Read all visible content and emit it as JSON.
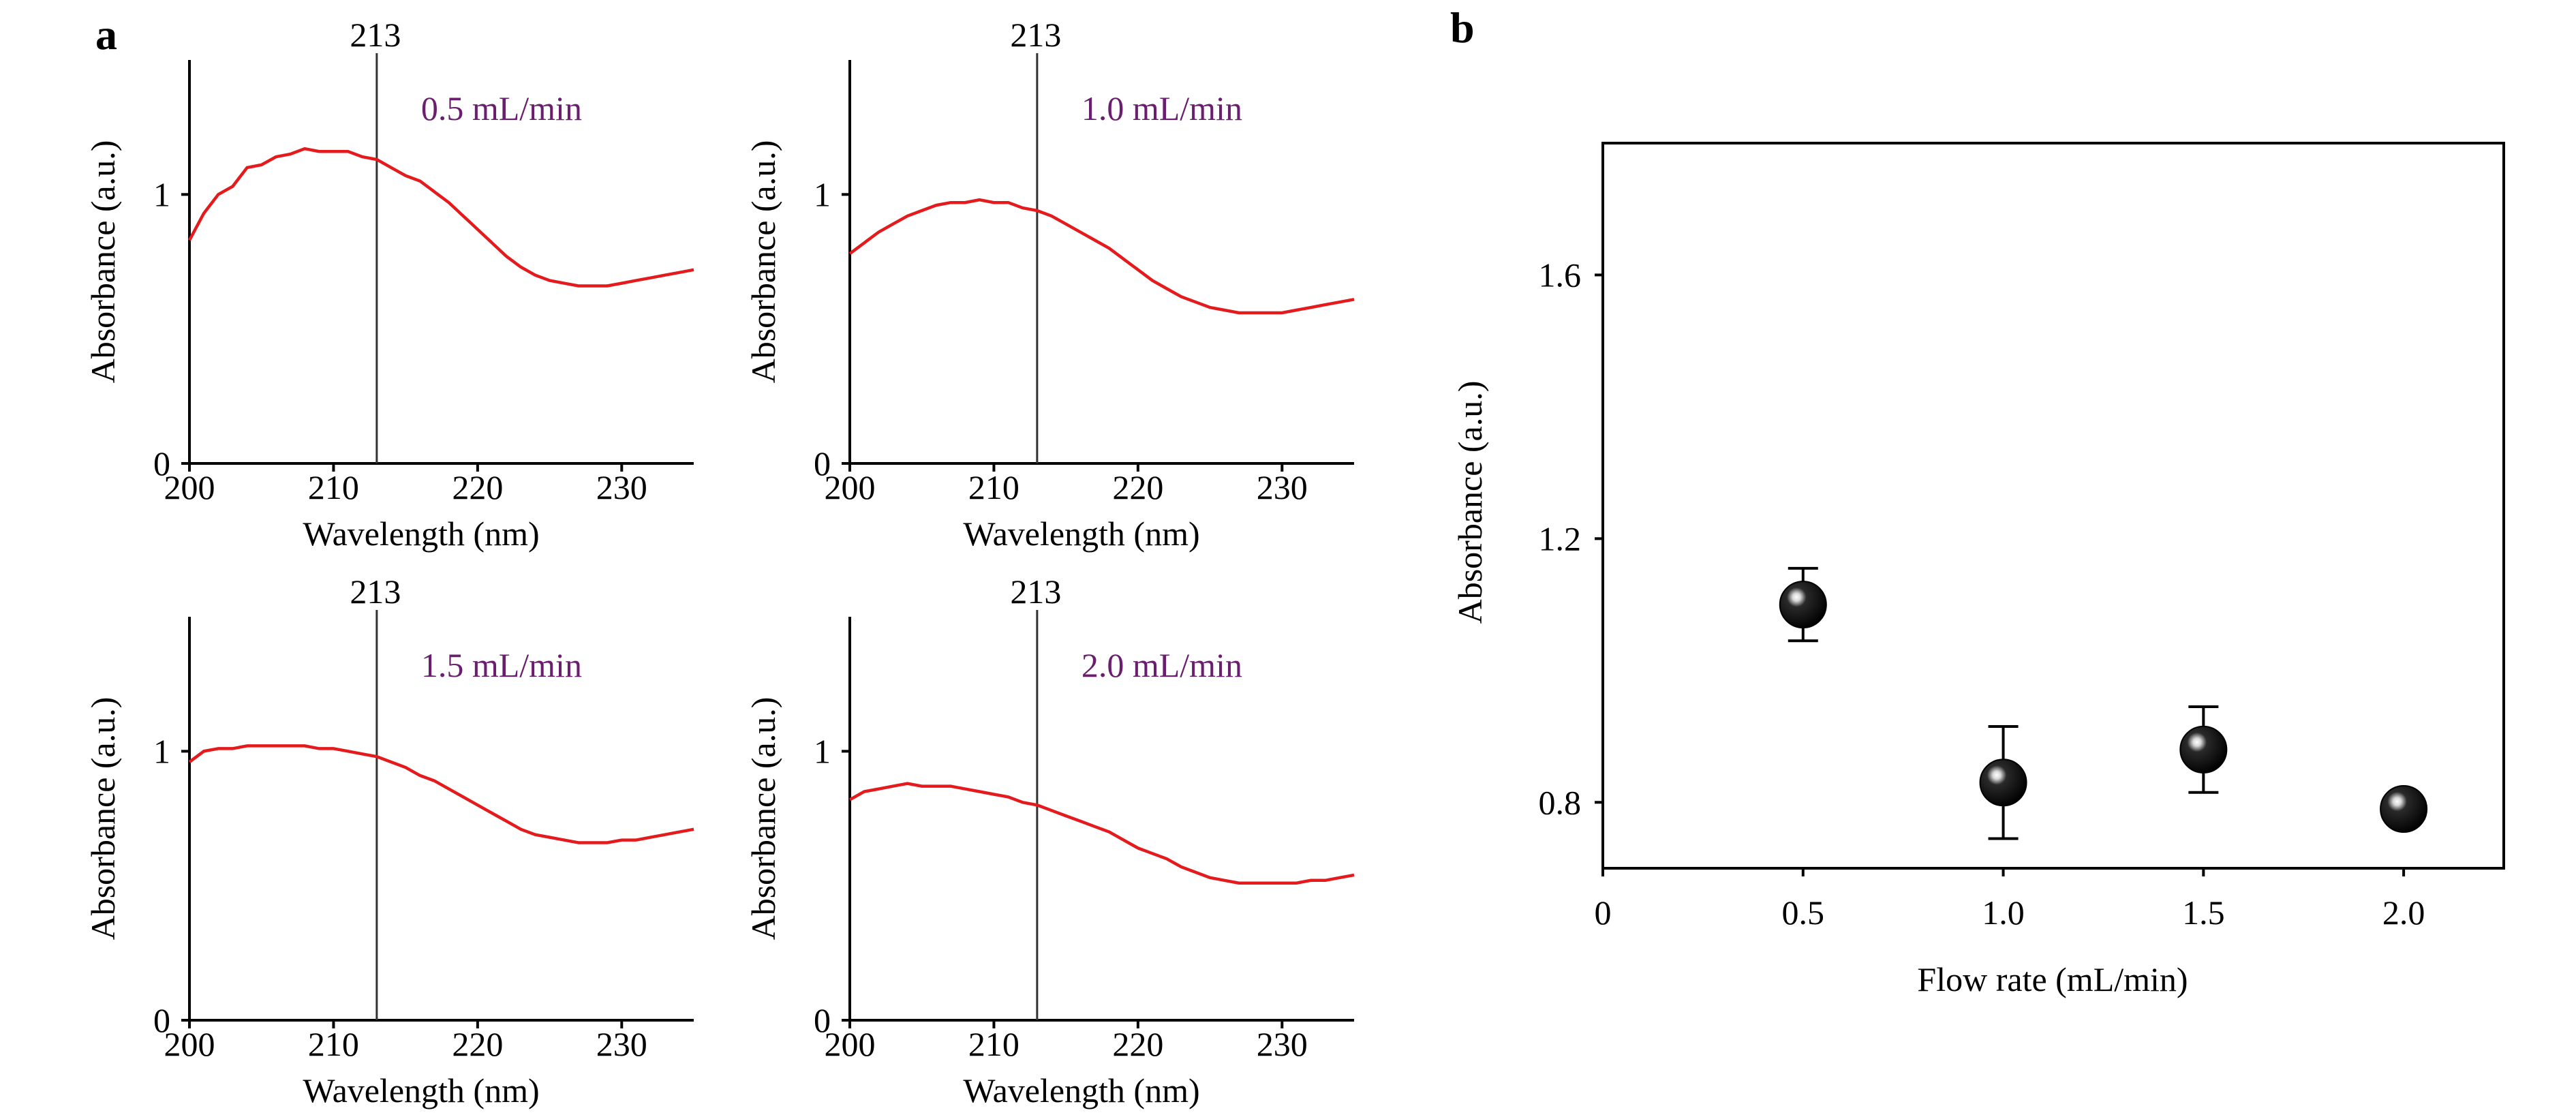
{
  "colors": {
    "curve": "#e41a1c",
    "flow_label": "#6a1f6e",
    "axis": "#000000",
    "marker_fill": "#000000",
    "marker_highlight": "#d8d8d8"
  },
  "panel_a": {
    "letter": "a",
    "marker_label": "213",
    "tick_x": [
      "200",
      "210",
      "220",
      "230"
    ],
    "tick_y": [
      "0",
      "1"
    ]
  },
  "panel_b": {
    "letter": "b",
    "tick_x": [
      "0",
      "0.5",
      "1.0",
      "1.5",
      "2.0"
    ],
    "tick_y": [
      "0.8",
      "1.2",
      "1.6"
    ]
  },
  "chart_data": [
    {
      "type": "line",
      "title": "0.5 mL/min",
      "xlabel": "Wavelength (nm)",
      "ylabel": "Absorbance (a.u.)",
      "xlim": [
        200,
        235
      ],
      "ylim": [
        0,
        1.5
      ],
      "marker_x": 213,
      "x": [
        200,
        201,
        202,
        203,
        204,
        205,
        206,
        207,
        208,
        209,
        210,
        211,
        212,
        213,
        214,
        215,
        216,
        217,
        218,
        219,
        220,
        221,
        222,
        223,
        224,
        225,
        226,
        227,
        228,
        229,
        230,
        231,
        232,
        233,
        234,
        235
      ],
      "series": [
        {
          "values": [
            0.83,
            0.93,
            1.0,
            1.03,
            1.1,
            1.11,
            1.14,
            1.15,
            1.17,
            1.16,
            1.16,
            1.16,
            1.14,
            1.13,
            1.1,
            1.07,
            1.05,
            1.01,
            0.97,
            0.92,
            0.87,
            0.82,
            0.77,
            0.73,
            0.7,
            0.68,
            0.67,
            0.66,
            0.66,
            0.66,
            0.67,
            0.68,
            0.69,
            0.7,
            0.71,
            0.72
          ]
        }
      ]
    },
    {
      "type": "line",
      "title": "1.0 mL/min",
      "xlabel": "Wavelength (nm)",
      "ylabel": "Absorbance (a.u.)",
      "xlim": [
        200,
        235
      ],
      "ylim": [
        0,
        1.5
      ],
      "marker_x": 213,
      "x": [
        200,
        201,
        202,
        203,
        204,
        205,
        206,
        207,
        208,
        209,
        210,
        211,
        212,
        213,
        214,
        215,
        216,
        217,
        218,
        219,
        220,
        221,
        222,
        223,
        224,
        225,
        226,
        227,
        228,
        229,
        230,
        231,
        232,
        233,
        234,
        235
      ],
      "series": [
        {
          "values": [
            0.78,
            0.82,
            0.86,
            0.89,
            0.92,
            0.94,
            0.96,
            0.97,
            0.97,
            0.98,
            0.97,
            0.97,
            0.95,
            0.94,
            0.92,
            0.89,
            0.86,
            0.83,
            0.8,
            0.76,
            0.72,
            0.68,
            0.65,
            0.62,
            0.6,
            0.58,
            0.57,
            0.56,
            0.56,
            0.56,
            0.56,
            0.57,
            0.58,
            0.59,
            0.6,
            0.61
          ]
        }
      ]
    },
    {
      "type": "line",
      "title": "1.5 mL/min",
      "xlabel": "Wavelength (nm)",
      "ylabel": "Absorbance (a.u.)",
      "xlim": [
        200,
        235
      ],
      "ylim": [
        0,
        1.5
      ],
      "marker_x": 213,
      "x": [
        200,
        201,
        202,
        203,
        204,
        205,
        206,
        207,
        208,
        209,
        210,
        211,
        212,
        213,
        214,
        215,
        216,
        217,
        218,
        219,
        220,
        221,
        222,
        223,
        224,
        225,
        226,
        227,
        228,
        229,
        230,
        231,
        232,
        233,
        234,
        235
      ],
      "series": [
        {
          "values": [
            0.96,
            1.0,
            1.01,
            1.01,
            1.02,
            1.02,
            1.02,
            1.02,
            1.02,
            1.01,
            1.01,
            1.0,
            0.99,
            0.98,
            0.96,
            0.94,
            0.91,
            0.89,
            0.86,
            0.83,
            0.8,
            0.77,
            0.74,
            0.71,
            0.69,
            0.68,
            0.67,
            0.66,
            0.66,
            0.66,
            0.67,
            0.67,
            0.68,
            0.69,
            0.7,
            0.71
          ]
        }
      ]
    },
    {
      "type": "line",
      "title": "2.0 mL/min",
      "xlabel": "Wavelength (nm)",
      "ylabel": "Absorbance (a.u.)",
      "xlim": [
        200,
        235
      ],
      "ylim": [
        0,
        1.5
      ],
      "marker_x": 213,
      "x": [
        200,
        201,
        202,
        203,
        204,
        205,
        206,
        207,
        208,
        209,
        210,
        211,
        212,
        213,
        214,
        215,
        216,
        217,
        218,
        219,
        220,
        221,
        222,
        223,
        224,
        225,
        226,
        227,
        228,
        229,
        230,
        231,
        232,
        233,
        234,
        235
      ],
      "series": [
        {
          "values": [
            0.82,
            0.85,
            0.86,
            0.87,
            0.88,
            0.87,
            0.87,
            0.87,
            0.86,
            0.85,
            0.84,
            0.83,
            0.81,
            0.8,
            0.78,
            0.76,
            0.74,
            0.72,
            0.7,
            0.67,
            0.64,
            0.62,
            0.6,
            0.57,
            0.55,
            0.53,
            0.52,
            0.51,
            0.51,
            0.51,
            0.51,
            0.51,
            0.52,
            0.52,
            0.53,
            0.54
          ]
        }
      ]
    },
    {
      "type": "scatter",
      "xlabel": "Flow rate (mL/min)",
      "ylabel": "Absorbance (a.u.)",
      "xlim": [
        0,
        2.25
      ],
      "ylim": [
        0.7,
        1.8
      ],
      "x": [
        0.5,
        1.0,
        1.5,
        2.0
      ],
      "series": [
        {
          "values": [
            1.1,
            0.83,
            0.88,
            0.79
          ],
          "error": [
            0.055,
            0.085,
            0.065,
            0.0
          ]
        }
      ]
    }
  ]
}
